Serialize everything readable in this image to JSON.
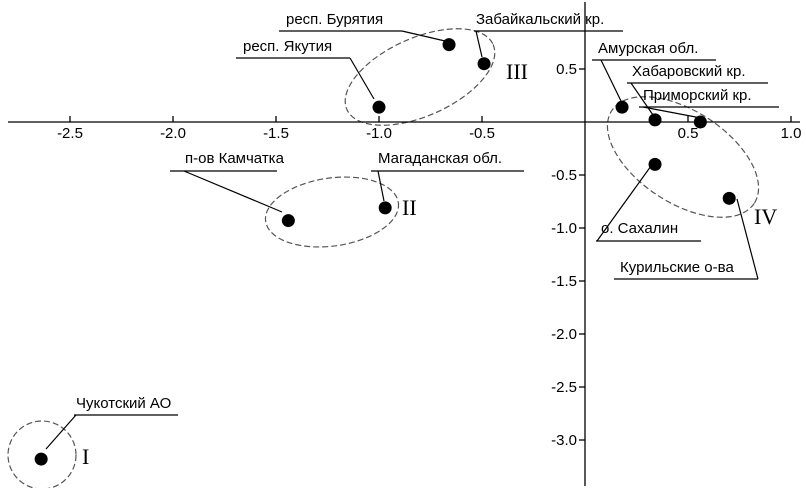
{
  "chart_data": {
    "type": "scatter",
    "xlim": [
      -2.78,
      1.0
    ],
    "ylim": [
      -3.45,
      0.85
    ],
    "x_ticks": [
      -2.5,
      -2.0,
      -1.5,
      -1.0,
      -0.5,
      0.5,
      1.0
    ],
    "x_tick_labels": [
      "-2.5",
      "-2.0",
      "-1.5",
      "-1.0",
      "-0.5",
      "0.5",
      "1.0"
    ],
    "y_ticks": [
      0.5,
      -0.5,
      -1.0,
      -1.5,
      -2.0,
      -2.5,
      -3.0
    ],
    "y_tick_labels": [
      "0.5",
      "-0.5",
      "-1.0",
      "-1.5",
      "-2.0",
      "-2.5",
      "-3.0"
    ],
    "grid": false,
    "points": [
      {
        "name": "Чукотский АО",
        "x": -2.64,
        "y": -3.18
      },
      {
        "name": "п-ов Камчатка",
        "x": -1.44,
        "y": -0.93
      },
      {
        "name": "Магаданская обл.",
        "x": -0.97,
        "y": -0.81
      },
      {
        "name": "респ. Бурятия",
        "x": -0.66,
        "y": 0.73
      },
      {
        "name": "Забайкальский кр.",
        "x": -0.49,
        "y": 0.55
      },
      {
        "name": "респ. Якутия",
        "x": -1.0,
        "y": 0.14
      },
      {
        "name": "Амурская обл.",
        "x": 0.18,
        "y": 0.14
      },
      {
        "name": "Хабаровский кр.",
        "x": 0.34,
        "y": 0.02
      },
      {
        "name": "Приморский кр.",
        "x": 0.56,
        "y": 0.0
      },
      {
        "name": "о. Сахалин",
        "x": 0.34,
        "y": -0.4
      },
      {
        "name": "Курильские о-ва",
        "x": 0.7,
        "y": -0.72
      }
    ],
    "groups": [
      {
        "label": "I",
        "members": [
          "Чукотский АО"
        ]
      },
      {
        "label": "II",
        "members": [
          "п-ов Камчатка",
          "Магаданская обл."
        ]
      },
      {
        "label": "III",
        "members": [
          "респ. Бурятия",
          "Забайкальский кр.",
          "респ. Якутия"
        ]
      },
      {
        "label": "IV",
        "members": [
          "Амурская обл.",
          "Хабаровский кр.",
          "Приморский кр.",
          "о. Сахалин",
          "Курильские о-ва"
        ]
      }
    ]
  }
}
